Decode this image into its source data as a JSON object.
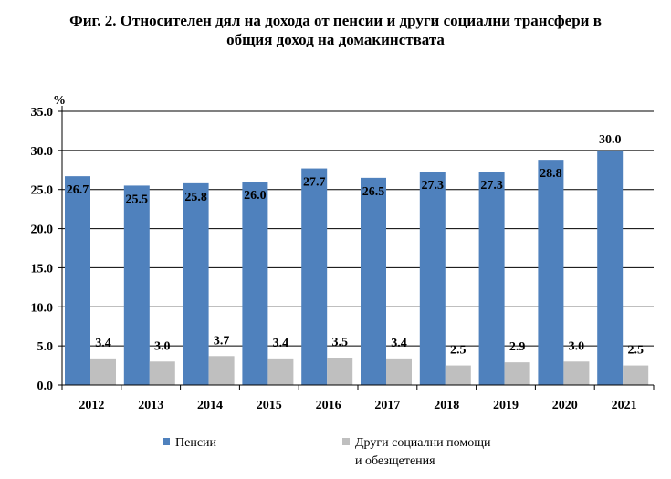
{
  "chart_data": {
    "type": "bar",
    "title_lines": [
      "Фиг. 2. Относителен дял на дохода от пенсии и други социални трансфери в",
      "общия доход на домакинствата"
    ],
    "yunit": "%",
    "categories": [
      "2012",
      "2013",
      "2014",
      "2015",
      "2016",
      "2017",
      "2018",
      "2019",
      "2020",
      "2021"
    ],
    "series": [
      {
        "name": "Пенсии",
        "color": "#4f81bd",
        "values": [
          26.7,
          25.5,
          25.8,
          26.0,
          27.7,
          26.5,
          27.3,
          27.3,
          28.8,
          30.0
        ],
        "labels": [
          "26.7",
          "25.5",
          "25.8",
          "26.0",
          "27.7",
          "26.5",
          "27.3",
          "27.3",
          "28.8",
          "30.0"
        ]
      },
      {
        "name": "Други социални помощи\nи обезщетения",
        "color": "#bfbfbf",
        "values": [
          3.4,
          3.0,
          3.7,
          3.4,
          3.5,
          3.4,
          2.5,
          2.9,
          3.0,
          2.5
        ],
        "labels": [
          "3.4",
          "3.0",
          "3.7",
          "3.4",
          "3.5",
          "3.4",
          "2.5",
          "2.9",
          "3.0",
          "2.5"
        ]
      }
    ],
    "ylim": [
      0,
      35
    ],
    "yticks": [
      "0.0",
      "5.0",
      "10.0",
      "15.0",
      "20.0",
      "25.0",
      "30.0",
      "35.0"
    ],
    "grid": true,
    "legend": "bottom"
  }
}
